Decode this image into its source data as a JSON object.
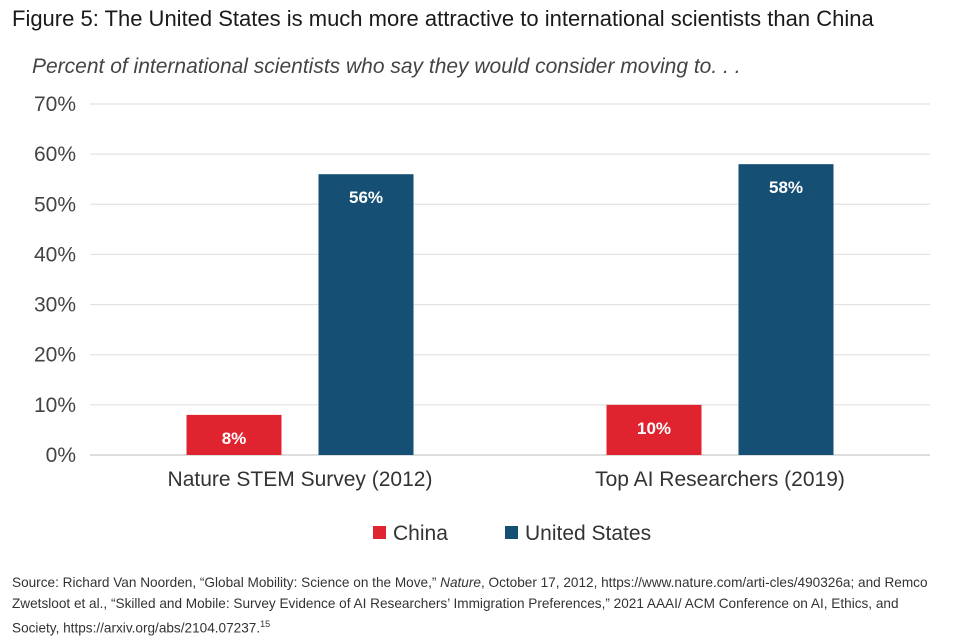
{
  "chart_data": {
    "type": "bar",
    "title": "Figure 5: The United States is much more attractive to international scientists than China",
    "subtitle": "Percent of international scientists who say they would consider moving to. . .",
    "categories": [
      "Nature STEM Survey (2012)",
      "Top AI Researchers (2019)"
    ],
    "series": [
      {
        "name": "China",
        "values": [
          8,
          10
        ],
        "labels": [
          "8%",
          "10%"
        ],
        "color": "#e0242f"
      },
      {
        "name": "United States",
        "values": [
          56,
          58
        ],
        "labels": [
          "56%",
          "58%"
        ],
        "color": "#154f73"
      }
    ],
    "ylim": [
      0,
      70
    ],
    "yticks": [
      0,
      10,
      20,
      30,
      40,
      50,
      60,
      70
    ],
    "ytick_labels": [
      "0%",
      "10%",
      "20%",
      "30%",
      "40%",
      "50%",
      "60%",
      "70%"
    ],
    "xlabel": "",
    "ylabel": "",
    "grid": true,
    "legend_position": "bottom-center"
  },
  "source": {
    "part1": "Source: Richard Van Noorden, “Global Mobility: Science on the Move,” ",
    "journal": "Nature",
    "part2": ", October 17, 2012, https://www.nature.com/arti-cles/490326a; and Remco Zwetsloot et al., “Skilled and Mobile: Survey Evidence of AI Researchers’ Immigration Preferences,” 2021 AAAI/ ACM Conference on AI, Ethics, and Society, https://arxiv.org/abs/2104.07237.",
    "footnote": "15"
  },
  "colors": {
    "grid": "#dddddd",
    "axis": "#bbbbbb"
  }
}
